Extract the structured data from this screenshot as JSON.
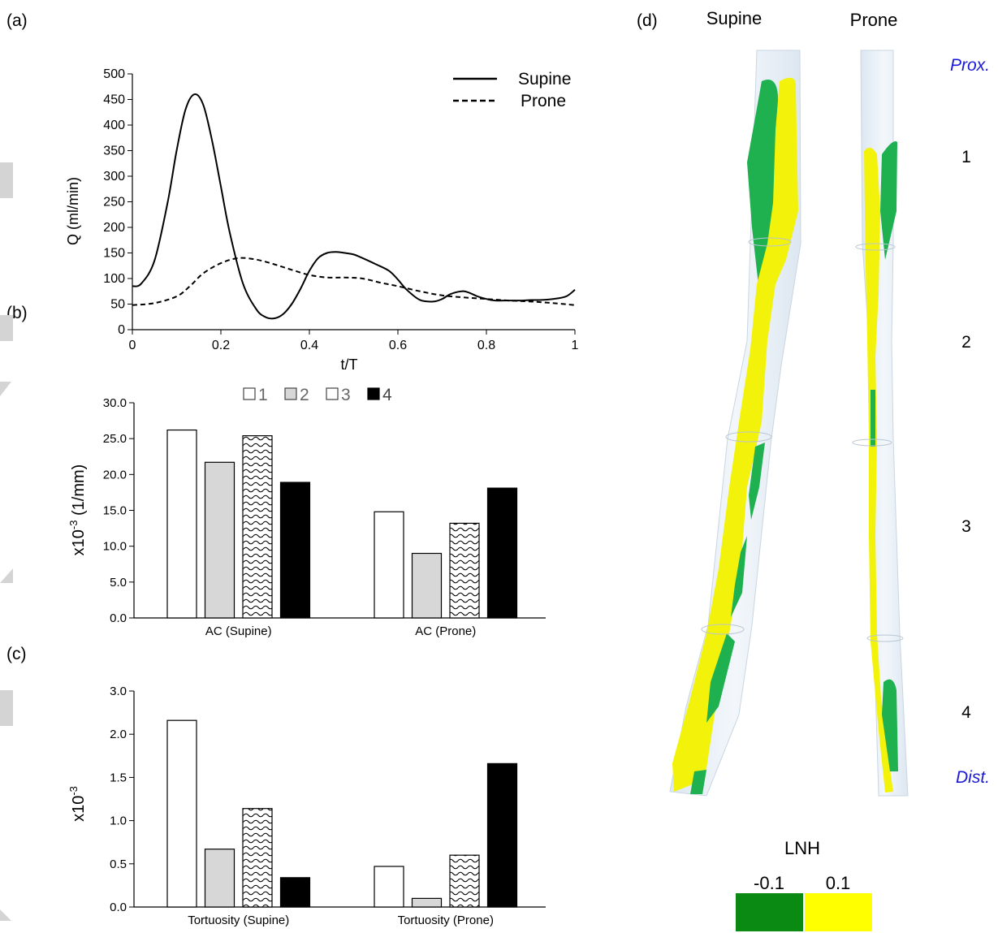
{
  "panels": {
    "a_label": "(a)",
    "b_label": "(b)",
    "c_label": "(c)",
    "d_label": "(d)"
  },
  "colors": {
    "bar_grey": "#d7d7d7",
    "bar_black": "#000000",
    "lnh_negative": "#0a8a12",
    "lnh_positive": "#ffff00",
    "vessel_green": "#1fb04f",
    "vessel_yellow": "#f2f20a",
    "vessel_tube": "#e6eef6",
    "side_label_blue": "#1a1ad6"
  },
  "chart_data": [
    {
      "id": "flow",
      "type": "line",
      "xlabel": "t/T",
      "ylabel": "Q (ml/min)",
      "xlim": [
        0,
        1
      ],
      "ylim": [
        0,
        500
      ],
      "xticks": [
        "0",
        "0.2",
        "0.4",
        "0.6",
        "0.8",
        "1"
      ],
      "yticks": [
        "0",
        "50",
        "100",
        "150",
        "200",
        "250",
        "300",
        "350",
        "400",
        "450",
        "500"
      ],
      "legend_position": "top-right",
      "series": [
        {
          "name": "Supine",
          "style": "solid",
          "x": [
            0,
            0.02,
            0.05,
            0.08,
            0.1,
            0.12,
            0.14,
            0.16,
            0.18,
            0.2,
            0.22,
            0.25,
            0.28,
            0.3,
            0.32,
            0.34,
            0.36,
            0.38,
            0.4,
            0.42,
            0.44,
            0.46,
            0.48,
            0.5,
            0.52,
            0.55,
            0.58,
            0.6,
            0.62,
            0.65,
            0.68,
            0.7,
            0.72,
            0.75,
            0.78,
            0.8,
            0.82,
            0.85,
            0.88,
            0.9,
            0.92,
            0.95,
            0.98,
            1.0
          ],
          "y": [
            85,
            90,
            135,
            250,
            350,
            430,
            460,
            440,
            370,
            280,
            190,
            90,
            40,
            25,
            22,
            30,
            50,
            80,
            115,
            140,
            150,
            152,
            150,
            147,
            140,
            128,
            115,
            98,
            78,
            58,
            55,
            60,
            70,
            75,
            65,
            60,
            57,
            57,
            57,
            58,
            58,
            60,
            65,
            78
          ]
        },
        {
          "name": "Prone",
          "style": "dashed",
          "x": [
            0,
            0.05,
            0.1,
            0.13,
            0.16,
            0.2,
            0.24,
            0.28,
            0.32,
            0.36,
            0.4,
            0.44,
            0.48,
            0.52,
            0.56,
            0.6,
            0.65,
            0.7,
            0.75,
            0.8,
            0.85,
            0.9,
            0.95,
            1.0
          ],
          "y": [
            48,
            52,
            65,
            85,
            110,
            130,
            140,
            137,
            128,
            117,
            107,
            102,
            102,
            100,
            92,
            85,
            75,
            67,
            63,
            60,
            57,
            55,
            52,
            48
          ]
        }
      ]
    },
    {
      "id": "ac",
      "type": "bar",
      "ylabel": "x10^-3 (1/mm)",
      "ylabel_base": "x10",
      "ylabel_exp": "-3",
      "ylabel_unit": " (1/mm)",
      "ylim": [
        0,
        30
      ],
      "yticks": [
        "0.0",
        "5.0",
        "10.0",
        "15.0",
        "20.0",
        "25.0",
        "30.0"
      ],
      "categories": [
        "AC (Supine)",
        "AC (Prone)"
      ],
      "legend_position": "top-center",
      "series": [
        {
          "name": "1",
          "fill": "white",
          "values": [
            26.2,
            14.8
          ]
        },
        {
          "name": "2",
          "fill": "grey",
          "values": [
            21.7,
            9.0
          ]
        },
        {
          "name": "3",
          "fill": "wave",
          "values": [
            25.4,
            13.2
          ]
        },
        {
          "name": "4",
          "fill": "black",
          "values": [
            18.9,
            18.1
          ]
        }
      ]
    },
    {
      "id": "tortuosity",
      "type": "bar",
      "ylabel": "x10^-3",
      "ylabel_base": "x10",
      "ylabel_exp": "-3",
      "ylabel_unit": "",
      "ylim": [
        0,
        2.5
      ],
      "yticks": [
        "0.0",
        "0.5",
        "1.0",
        "1.5",
        "2.0",
        "3.0"
      ],
      "categories": [
        "Tortuosity (Supine)",
        "Tortuosity (Prone)"
      ],
      "series": [
        {
          "name": "1",
          "fill": "white",
          "values": [
            2.16,
            0.47
          ]
        },
        {
          "name": "2",
          "fill": "grey",
          "values": [
            0.67,
            0.1
          ]
        },
        {
          "name": "3",
          "fill": "wave",
          "values": [
            1.14,
            0.6
          ]
        },
        {
          "name": "4",
          "fill": "black",
          "values": [
            0.34,
            1.66
          ]
        }
      ]
    }
  ],
  "vessels": {
    "headers": [
      "Supine",
      "Prone"
    ],
    "prox_label": "Prox.",
    "dist_label": "Dist.",
    "segments": [
      "1",
      "2",
      "3",
      "4"
    ],
    "colorbar": {
      "title": "LNH",
      "min_label": "-0.1",
      "max_label": "0.1"
    }
  }
}
